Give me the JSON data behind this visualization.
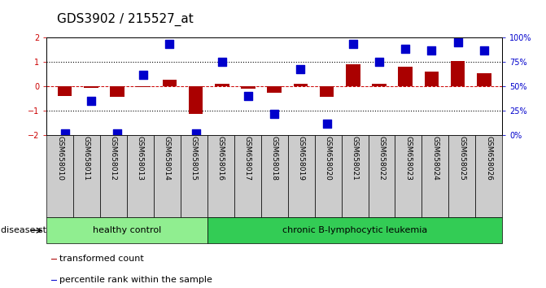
{
  "title": "GDS3902 / 215527_at",
  "samples": [
    "GSM658010",
    "GSM658011",
    "GSM658012",
    "GSM658013",
    "GSM658014",
    "GSM658015",
    "GSM658016",
    "GSM658017",
    "GSM658018",
    "GSM658019",
    "GSM658020",
    "GSM658021",
    "GSM658022",
    "GSM658023",
    "GSM658024",
    "GSM658025",
    "GSM658026"
  ],
  "red_bars": [
    -0.38,
    -0.05,
    -0.42,
    -0.04,
    0.28,
    -1.12,
    0.12,
    -0.09,
    -0.27,
    0.12,
    -0.42,
    0.92,
    0.12,
    0.82,
    0.6,
    1.05,
    0.55
  ],
  "blue_pct": [
    2,
    35,
    2,
    62,
    93,
    2,
    75,
    40,
    22,
    68,
    12,
    93,
    75,
    88,
    87,
    95,
    87
  ],
  "ylim_left": [
    -2,
    2
  ],
  "ylim_right": [
    0,
    100
  ],
  "yticks_left": [
    -2,
    -1,
    0,
    1,
    2
  ],
  "yticks_right": [
    0,
    25,
    50,
    75,
    100
  ],
  "left_tick_color": "#cc0000",
  "right_tick_color": "#0000cc",
  "healthy_count": 6,
  "healthy_label": "healthy control",
  "leukemia_label": "chronic B-lymphocytic leukemia",
  "disease_state_label": "disease state",
  "bar_color": "#aa0000",
  "dot_color": "#0000cc",
  "healthy_bg": "#90ee90",
  "leukemia_bg": "#33cc55",
  "dot_size": 55,
  "legend_bar_label": "transformed count",
  "legend_dot_label": "percentile rank within the sample",
  "title_fontsize": 11,
  "tick_fontsize": 7,
  "bar_width": 0.55,
  "sample_box_color": "#cccccc"
}
